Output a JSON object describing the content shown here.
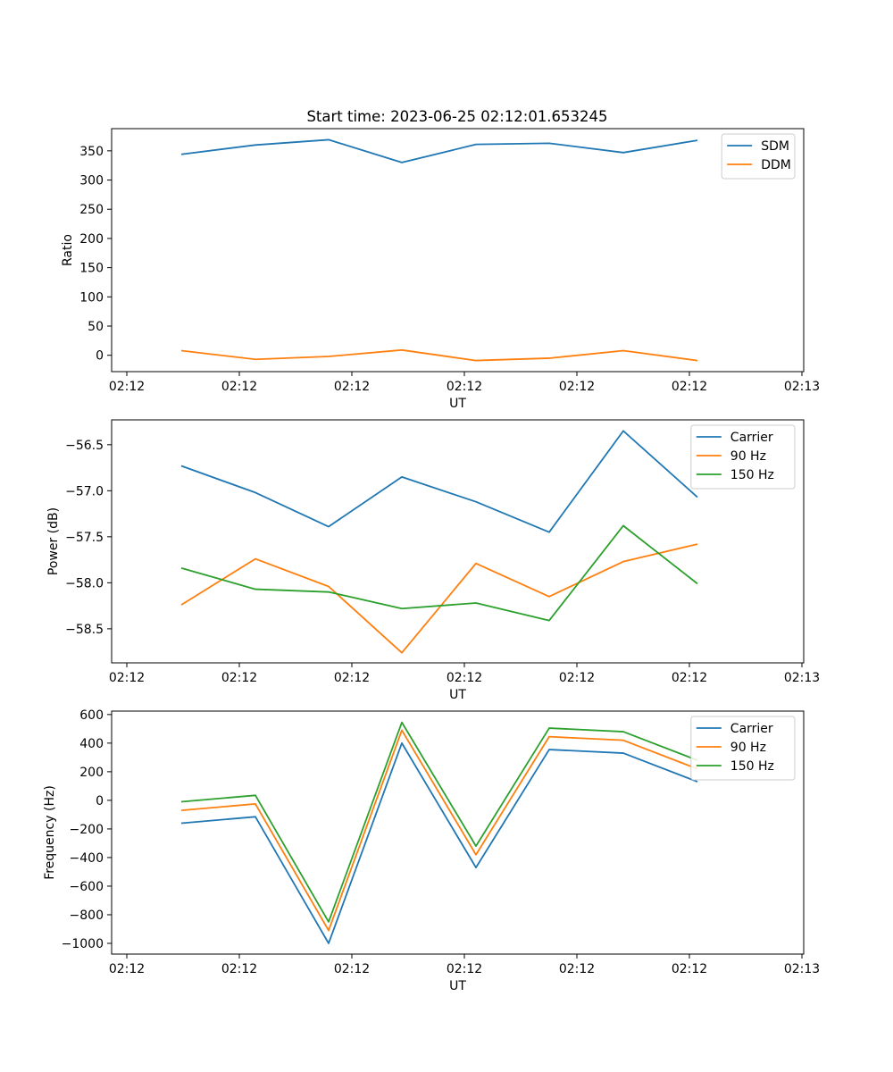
{
  "figure": {
    "title": "Start time: 2023-06-25 02:12:01.653245"
  },
  "chart_data": [
    {
      "type": "line",
      "title": "Start time: 2023-06-25 02:12:01.653245",
      "xlabel": "UT",
      "ylabel": "Ratio",
      "x_tick_labels": [
        "02:12",
        "02:12",
        "02:12",
        "02:12",
        "02:12",
        "02:12",
        "02:13"
      ],
      "y_ticks": [
        0,
        50,
        100,
        150,
        200,
        250,
        300,
        350
      ],
      "ylim": [
        -28,
        388
      ],
      "grid": false,
      "legend": "top-right",
      "series": [
        {
          "name": "SDM",
          "color": "#1f77b4",
          "values": [
            344,
            360,
            369,
            330,
            361,
            363,
            347,
            368
          ]
        },
        {
          "name": "DDM",
          "color": "#ff7f0e",
          "values": [
            8,
            -7,
            -2,
            9,
            -9,
            -5,
            8,
            -9
          ]
        }
      ]
    },
    {
      "type": "line",
      "xlabel": "UT",
      "ylabel": "Power (dB)",
      "x_tick_labels": [
        "02:12",
        "02:12",
        "02:12",
        "02:12",
        "02:12",
        "02:12",
        "02:13"
      ],
      "y_ticks": [
        -58.5,
        -58.0,
        -57.5,
        -57.0,
        -56.5
      ],
      "y_tick_labels": [
        "−58.5",
        "−58.0",
        "−57.5",
        "−57.0",
        "−56.5"
      ],
      "ylim": [
        -58.87,
        -56.23
      ],
      "grid": false,
      "legend": "top-right",
      "series": [
        {
          "name": "Carrier",
          "color": "#1f77b4",
          "values": [
            -56.73,
            -57.02,
            -57.39,
            -56.85,
            -57.12,
            -57.45,
            -56.35,
            -57.07
          ]
        },
        {
          "name": "90 Hz",
          "color": "#ff7f0e",
          "values": [
            -58.24,
            -57.74,
            -58.04,
            -58.76,
            -57.79,
            -58.15,
            -57.77,
            -57.58
          ]
        },
        {
          "name": "150 Hz",
          "color": "#2ca02c",
          "values": [
            -57.84,
            -58.07,
            -58.1,
            -58.28,
            -58.22,
            -58.41,
            -57.38,
            -58.01
          ]
        }
      ]
    },
    {
      "type": "line",
      "xlabel": "UT",
      "ylabel": "Frequency (Hz)",
      "x_tick_labels": [
        "02:12",
        "02:12",
        "02:12",
        "02:12",
        "02:12",
        "02:12",
        "02:13"
      ],
      "y_ticks": [
        -1000,
        -800,
        -600,
        -400,
        -200,
        0,
        200,
        400,
        600
      ],
      "y_tick_labels": [
        "−1000",
        "−800",
        "−600",
        "−400",
        "−200",
        "0",
        "200",
        "400",
        "600"
      ],
      "ylim": [
        -1075,
        624
      ],
      "grid": false,
      "legend": "top-right",
      "series": [
        {
          "name": "Carrier",
          "color": "#1f77b4",
          "values": [
            -160,
            -115,
            -1000,
            400,
            -470,
            355,
            330,
            130
          ]
        },
        {
          "name": "90 Hz",
          "color": "#ff7f0e",
          "values": [
            -70,
            -25,
            -910,
            490,
            -380,
            445,
            420,
            220
          ]
        },
        {
          "name": "150 Hz",
          "color": "#2ca02c",
          "values": [
            -10,
            35,
            -850,
            545,
            -320,
            505,
            480,
            280
          ]
        }
      ]
    }
  ]
}
